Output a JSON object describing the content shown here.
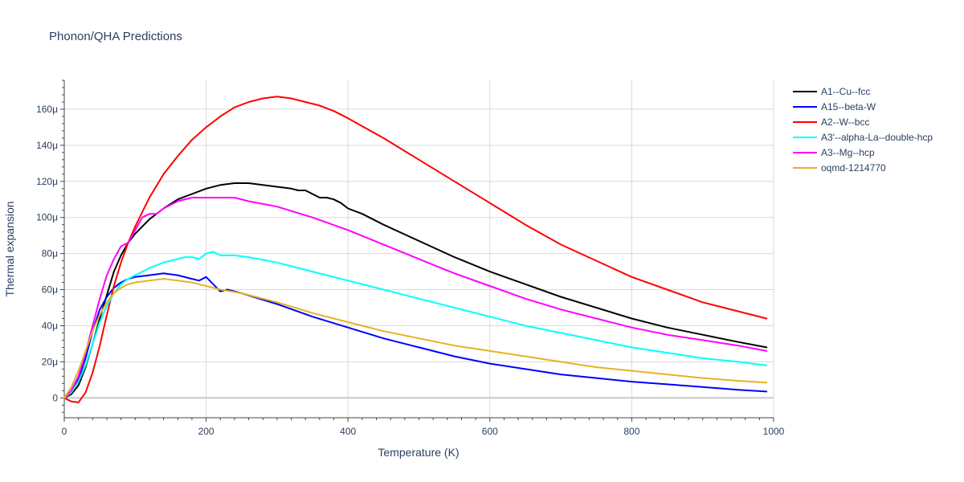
{
  "chart_data": {
    "type": "line",
    "title": "Phonon/QHA Predictions",
    "xlabel": "Temperature (K)",
    "ylabel": "Thermal expansion",
    "xlim": [
      0,
      1000
    ],
    "ylim": [
      -1.1e-05,
      0.000176
    ],
    "x_ticks": [
      0,
      200,
      400,
      600,
      800,
      1000
    ],
    "x_tick_labels": [
      "0",
      "200",
      "400",
      "600",
      "800",
      "1000"
    ],
    "y_ticks": [
      0,
      2e-05,
      4e-05,
      6e-05,
      8e-05,
      0.0001,
      0.00012,
      0.00014,
      0.00016
    ],
    "y_tick_labels": [
      "0",
      "20μ",
      "40μ",
      "60μ",
      "80μ",
      "100μ",
      "120μ",
      "140μ",
      "160μ"
    ],
    "grid": true,
    "legend_position": "top-right",
    "series": [
      {
        "name": "A1--Cu--fcc",
        "color": "#000000",
        "points": [
          [
            0,
            0
          ],
          [
            10,
            2e-06
          ],
          [
            20,
            7e-06
          ],
          [
            30,
            1.7e-05
          ],
          [
            40,
            3e-05
          ],
          [
            50,
            4.4e-05
          ],
          [
            60,
            5.7e-05
          ],
          [
            70,
            7e-05
          ],
          [
            80,
            7.9e-05
          ],
          [
            90,
            8.6e-05
          ],
          [
            100,
            9.1e-05
          ],
          [
            120,
            9.9e-05
          ],
          [
            140,
            0.000105
          ],
          [
            160,
            0.00011
          ],
          [
            180,
            0.000113
          ],
          [
            200,
            0.000116
          ],
          [
            220,
            0.000118
          ],
          [
            240,
            0.000119
          ],
          [
            260,
            0.000119
          ],
          [
            280,
            0.000118
          ],
          [
            300,
            0.000117
          ],
          [
            320,
            0.000116
          ],
          [
            330,
            0.000115
          ],
          [
            340,
            0.000115
          ],
          [
            350,
            0.000113
          ],
          [
            360,
            0.000111
          ],
          [
            370,
            0.000111
          ],
          [
            380,
            0.00011
          ],
          [
            390,
            0.000108
          ],
          [
            400,
            0.000105
          ],
          [
            420,
            0.000102
          ],
          [
            450,
            9.6e-05
          ],
          [
            500,
            8.7e-05
          ],
          [
            550,
            7.8e-05
          ],
          [
            600,
            7e-05
          ],
          [
            650,
            6.3e-05
          ],
          [
            700,
            5.6e-05
          ],
          [
            750,
            5e-05
          ],
          [
            800,
            4.4e-05
          ],
          [
            850,
            3.9e-05
          ],
          [
            900,
            3.5e-05
          ],
          [
            950,
            3.1e-05
          ],
          [
            990,
            2.8e-05
          ]
        ]
      },
      {
        "name": "A15--beta-W",
        "color": "#0000ff",
        "points": [
          [
            0,
            0
          ],
          [
            10,
            3e-06
          ],
          [
            20,
            1e-05
          ],
          [
            30,
            2.2e-05
          ],
          [
            40,
            3.7e-05
          ],
          [
            50,
            4.9e-05
          ],
          [
            60,
            5.6e-05
          ],
          [
            70,
            6.1e-05
          ],
          [
            80,
            6.4e-05
          ],
          [
            90,
            6.6e-05
          ],
          [
            100,
            6.7e-05
          ],
          [
            120,
            6.8e-05
          ],
          [
            140,
            6.9e-05
          ],
          [
            160,
            6.8e-05
          ],
          [
            180,
            6.6e-05
          ],
          [
            190,
            6.5e-05
          ],
          [
            200,
            6.7e-05
          ],
          [
            210,
            6.3e-05
          ],
          [
            220,
            5.9e-05
          ],
          [
            230,
            6e-05
          ],
          [
            250,
            5.8e-05
          ],
          [
            300,
            5.2e-05
          ],
          [
            350,
            4.5e-05
          ],
          [
            400,
            3.9e-05
          ],
          [
            450,
            3.3e-05
          ],
          [
            500,
            2.8e-05
          ],
          [
            550,
            2.3e-05
          ],
          [
            600,
            1.9e-05
          ],
          [
            650,
            1.6e-05
          ],
          [
            700,
            1.3e-05
          ],
          [
            750,
            1.1e-05
          ],
          [
            800,
            9e-06
          ],
          [
            850,
            7.5e-06
          ],
          [
            900,
            6e-06
          ],
          [
            950,
            4.5e-06
          ],
          [
            990,
            3.5e-06
          ]
        ]
      },
      {
        "name": "A2--W--bcc",
        "color": "#ff0000",
        "points": [
          [
            0,
            0
          ],
          [
            10,
            -2e-06
          ],
          [
            20,
            -2.5e-06
          ],
          [
            30,
            3e-06
          ],
          [
            40,
            1.4e-05
          ],
          [
            50,
            2.9e-05
          ],
          [
            60,
            4.6e-05
          ],
          [
            70,
            6.2e-05
          ],
          [
            80,
            7.5e-05
          ],
          [
            90,
            8.6e-05
          ],
          [
            100,
            9.5e-05
          ],
          [
            120,
            0.000111
          ],
          [
            140,
            0.000124
          ],
          [
            160,
            0.000134
          ],
          [
            180,
            0.000143
          ],
          [
            200,
            0.00015
          ],
          [
            220,
            0.000156
          ],
          [
            240,
            0.000161
          ],
          [
            260,
            0.000164
          ],
          [
            280,
            0.000166
          ],
          [
            300,
            0.000167
          ],
          [
            320,
            0.000166
          ],
          [
            340,
            0.000164
          ],
          [
            360,
            0.000162
          ],
          [
            380,
            0.000159
          ],
          [
            400,
            0.000155
          ],
          [
            450,
            0.000144
          ],
          [
            500,
            0.000132
          ],
          [
            550,
            0.00012
          ],
          [
            600,
            0.000108
          ],
          [
            650,
            9.6e-05
          ],
          [
            700,
            8.5e-05
          ],
          [
            750,
            7.6e-05
          ],
          [
            800,
            6.7e-05
          ],
          [
            850,
            6e-05
          ],
          [
            900,
            5.3e-05
          ],
          [
            950,
            4.8e-05
          ],
          [
            990,
            4.4e-05
          ]
        ]
      },
      {
        "name": "A3'--alpha-La--double-hcp",
        "color": "#00ffff",
        "points": [
          [
            0,
            0
          ],
          [
            10,
            3e-06
          ],
          [
            20,
            9e-06
          ],
          [
            30,
            1.8e-05
          ],
          [
            40,
            3e-05
          ],
          [
            50,
            4.2e-05
          ],
          [
            60,
            5.1e-05
          ],
          [
            70,
            5.8e-05
          ],
          [
            80,
            6.3e-05
          ],
          [
            90,
            6.6e-05
          ],
          [
            100,
            6.8e-05
          ],
          [
            120,
            7.2e-05
          ],
          [
            140,
            7.5e-05
          ],
          [
            160,
            7.7e-05
          ],
          [
            170,
            7.8e-05
          ],
          [
            180,
            7.8e-05
          ],
          [
            190,
            7.7e-05
          ],
          [
            200,
            8e-05
          ],
          [
            210,
            8.1e-05
          ],
          [
            220,
            7.9e-05
          ],
          [
            240,
            7.9e-05
          ],
          [
            260,
            7.8e-05
          ],
          [
            300,
            7.5e-05
          ],
          [
            350,
            7e-05
          ],
          [
            400,
            6.5e-05
          ],
          [
            450,
            6e-05
          ],
          [
            500,
            5.5e-05
          ],
          [
            550,
            5e-05
          ],
          [
            600,
            4.5e-05
          ],
          [
            650,
            4e-05
          ],
          [
            700,
            3.6e-05
          ],
          [
            750,
            3.2e-05
          ],
          [
            800,
            2.8e-05
          ],
          [
            850,
            2.5e-05
          ],
          [
            900,
            2.2e-05
          ],
          [
            950,
            2e-05
          ],
          [
            990,
            1.8e-05
          ]
        ]
      },
      {
        "name": "A3--Mg--hcp",
        "color": "#ff00ff",
        "points": [
          [
            0,
            0
          ],
          [
            10,
            4e-06
          ],
          [
            20,
            1.2e-05
          ],
          [
            30,
            2.5e-05
          ],
          [
            40,
            4e-05
          ],
          [
            50,
            5.5e-05
          ],
          [
            60,
            6.8e-05
          ],
          [
            70,
            7.7e-05
          ],
          [
            80,
            8.4e-05
          ],
          [
            90,
            8.6e-05
          ],
          [
            100,
            9.3e-05
          ],
          [
            110,
            0.0001
          ],
          [
            120,
            0.000102
          ],
          [
            130,
            0.000102
          ],
          [
            140,
            0.000105
          ],
          [
            160,
            0.000109
          ],
          [
            180,
            0.000111
          ],
          [
            200,
            0.000111
          ],
          [
            220,
            0.000111
          ],
          [
            240,
            0.000111
          ],
          [
            260,
            0.000109
          ],
          [
            300,
            0.000106
          ],
          [
            350,
            0.0001
          ],
          [
            400,
            9.3e-05
          ],
          [
            450,
            8.5e-05
          ],
          [
            500,
            7.7e-05
          ],
          [
            550,
            6.9e-05
          ],
          [
            600,
            6.2e-05
          ],
          [
            650,
            5.5e-05
          ],
          [
            700,
            4.9e-05
          ],
          [
            750,
            4.4e-05
          ],
          [
            800,
            3.9e-05
          ],
          [
            850,
            3.5e-05
          ],
          [
            900,
            3.2e-05
          ],
          [
            950,
            2.9e-05
          ],
          [
            990,
            2.6e-05
          ]
        ]
      },
      {
        "name": "oqmd-1214770",
        "color": "#e6b321",
        "points": [
          [
            0,
            0
          ],
          [
            10,
            6e-06
          ],
          [
            20,
            1.5e-05
          ],
          [
            30,
            2.6e-05
          ],
          [
            40,
            3.7e-05
          ],
          [
            50,
            4.6e-05
          ],
          [
            60,
            5.3e-05
          ],
          [
            70,
            5.8e-05
          ],
          [
            80,
            6.1e-05
          ],
          [
            90,
            6.3e-05
          ],
          [
            100,
            6.4e-05
          ],
          [
            120,
            6.5e-05
          ],
          [
            140,
            6.6e-05
          ],
          [
            160,
            6.5e-05
          ],
          [
            180,
            6.4e-05
          ],
          [
            200,
            6.2e-05
          ],
          [
            220,
            6e-05
          ],
          [
            250,
            5.8e-05
          ],
          [
            300,
            5.3e-05
          ],
          [
            350,
            4.7e-05
          ],
          [
            400,
            4.2e-05
          ],
          [
            450,
            3.7e-05
          ],
          [
            500,
            3.3e-05
          ],
          [
            550,
            2.9e-05
          ],
          [
            600,
            2.6e-05
          ],
          [
            650,
            2.3e-05
          ],
          [
            700,
            2e-05
          ],
          [
            750,
            1.7e-05
          ],
          [
            800,
            1.5e-05
          ],
          [
            850,
            1.3e-05
          ],
          [
            900,
            1.1e-05
          ],
          [
            950,
            9.5e-06
          ],
          [
            990,
            8.5e-06
          ]
        ]
      }
    ]
  }
}
